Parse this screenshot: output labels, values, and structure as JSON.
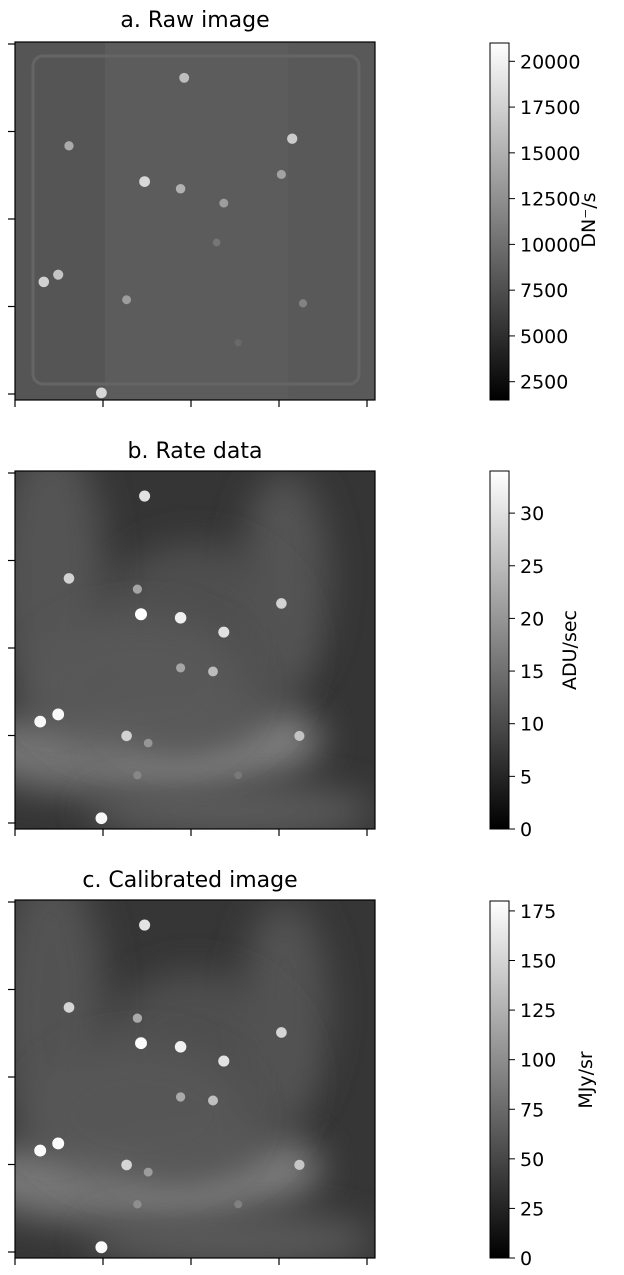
{
  "chart_data": [
    {
      "type": "heatmap",
      "title": "a. Raw image",
      "colorbar": {
        "label": "DN⁻/s",
        "min": 1500,
        "max": 21000,
        "ticks": [
          "2500",
          "5000",
          "7500",
          "10000",
          "12500",
          "15000",
          "17500",
          "20000"
        ],
        "cmap": "gray"
      },
      "image": {
        "background_level": 8500,
        "left_band_level": 8000,
        "right_band_level": 8300,
        "stars": [
          [
            0.47,
            0.1,
            16000
          ],
          [
            0.77,
            0.27,
            17000
          ],
          [
            0.15,
            0.29,
            14500
          ],
          [
            0.36,
            0.39,
            18000
          ],
          [
            0.46,
            0.41,
            15000
          ],
          [
            0.58,
            0.45,
            13500
          ],
          [
            0.74,
            0.37,
            14000
          ],
          [
            0.56,
            0.56,
            10500
          ],
          [
            0.08,
            0.67,
            17500
          ],
          [
            0.12,
            0.65,
            16500
          ],
          [
            0.31,
            0.72,
            13500
          ],
          [
            0.8,
            0.73,
            11500
          ],
          [
            0.24,
            0.98,
            18000
          ],
          [
            0.62,
            0.84,
            9500
          ]
        ]
      },
      "xticks": 5,
      "yticks": 5,
      "grid": false
    },
    {
      "type": "heatmap",
      "title": "b. Rate data",
      "colorbar": {
        "label": "ADU/sec",
        "min": 0,
        "max": 34,
        "ticks": [
          "0",
          "5",
          "10",
          "15",
          "20",
          "25",
          "30"
        ],
        "cmap": "gray"
      },
      "image": {
        "background_level": 7,
        "nebula": [
          [
            0.25,
            0.78,
            0.38,
            0.12,
            10
          ],
          [
            0.55,
            0.75,
            0.3,
            0.12,
            12
          ],
          [
            0.75,
            0.3,
            0.12,
            0.3,
            5
          ],
          [
            0.5,
            0.5,
            0.3,
            0.3,
            4
          ],
          [
            0.1,
            0.3,
            0.15,
            0.4,
            5
          ],
          [
            0.35,
            0.6,
            0.3,
            0.2,
            5
          ],
          [
            0.6,
            0.95,
            0.4,
            0.08,
            6
          ]
        ],
        "stars": [
          [
            0.36,
            0.07,
            30
          ],
          [
            0.15,
            0.3,
            28
          ],
          [
            0.34,
            0.33,
            22
          ],
          [
            0.35,
            0.4,
            34
          ],
          [
            0.46,
            0.41,
            32
          ],
          [
            0.58,
            0.45,
            30
          ],
          [
            0.74,
            0.37,
            28
          ],
          [
            0.46,
            0.55,
            22
          ],
          [
            0.55,
            0.56,
            25
          ],
          [
            0.07,
            0.7,
            33
          ],
          [
            0.12,
            0.68,
            33
          ],
          [
            0.31,
            0.74,
            28
          ],
          [
            0.79,
            0.74,
            26
          ],
          [
            0.37,
            0.76,
            20
          ],
          [
            0.34,
            0.85,
            18
          ],
          [
            0.62,
            0.85,
            16
          ],
          [
            0.24,
            0.97,
            33
          ]
        ]
      },
      "xticks": 5,
      "yticks": 5,
      "grid": false
    },
    {
      "type": "heatmap",
      "title": "c. Calibrated image",
      "colorbar": {
        "label": "MJy/sr",
        "min": 0,
        "max": 180,
        "ticks": [
          "0",
          "25",
          "50",
          "75",
          "100",
          "125",
          "150",
          "175"
        ],
        "cmap": "gray"
      },
      "image": {
        "background_level": 38,
        "nebula": [
          [
            0.25,
            0.78,
            0.38,
            0.12,
            55
          ],
          [
            0.55,
            0.75,
            0.3,
            0.12,
            60
          ],
          [
            0.75,
            0.3,
            0.12,
            0.3,
            25
          ],
          [
            0.5,
            0.5,
            0.3,
            0.3,
            20
          ],
          [
            0.1,
            0.3,
            0.15,
            0.4,
            25
          ],
          [
            0.35,
            0.6,
            0.3,
            0.2,
            25
          ],
          [
            0.6,
            0.95,
            0.4,
            0.08,
            30
          ]
        ],
        "stars": [
          [
            0.36,
            0.07,
            160
          ],
          [
            0.15,
            0.3,
            150
          ],
          [
            0.34,
            0.33,
            120
          ],
          [
            0.35,
            0.4,
            178
          ],
          [
            0.46,
            0.41,
            170
          ],
          [
            0.58,
            0.45,
            160
          ],
          [
            0.74,
            0.37,
            150
          ],
          [
            0.46,
            0.55,
            120
          ],
          [
            0.55,
            0.56,
            135
          ],
          [
            0.07,
            0.7,
            178
          ],
          [
            0.12,
            0.68,
            178
          ],
          [
            0.31,
            0.74,
            150
          ],
          [
            0.79,
            0.74,
            140
          ],
          [
            0.37,
            0.76,
            110
          ],
          [
            0.34,
            0.85,
            100
          ],
          [
            0.62,
            0.85,
            90
          ],
          [
            0.24,
            0.97,
            178
          ]
        ]
      },
      "xticks": 5,
      "yticks": 5,
      "grid": false
    }
  ]
}
